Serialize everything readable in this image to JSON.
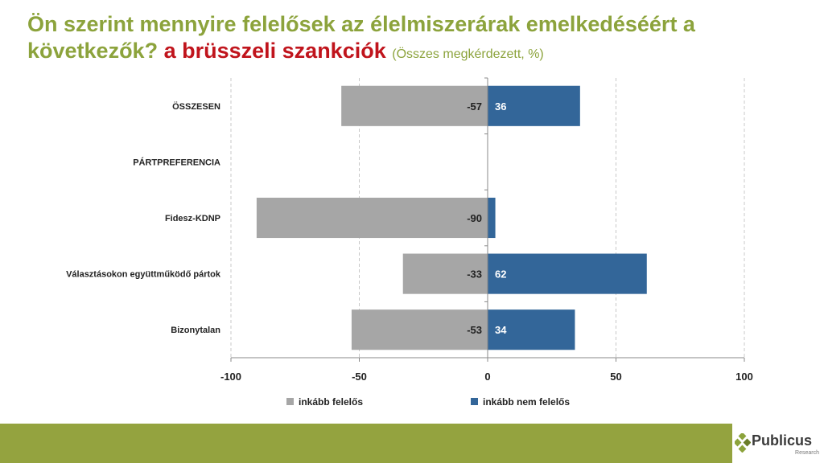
{
  "title": {
    "main": "Ön szerint mennyire felelősek az élelmiszerárak emelkedéséért a következők?",
    "highlight": "a brüsszeli szankciók",
    "subtitle": "(Összes megkérdezett, %)"
  },
  "logo": {
    "name": "Publicus",
    "sub": "Research"
  },
  "colors": {
    "title": "#8ca33c",
    "highlight": "#c0141c",
    "neg": "#a6a6a6",
    "pos": "#336699",
    "footer": "#94a33f"
  },
  "chart_data": {
    "type": "bar",
    "orientation": "horizontal-diverging",
    "categories": [
      "ÖSSZESEN",
      "PÁRTPREFERENCIA",
      "Fidesz-KDNP",
      "Választásokon együttműködő pártok",
      "Bizonytalan"
    ],
    "series": [
      {
        "name": "inkább felelős",
        "values": [
          -57,
          null,
          -90,
          -33,
          -53
        ],
        "color": "#a6a6a6"
      },
      {
        "name": "inkább nem felelős",
        "values": [
          36,
          null,
          3,
          62,
          34
        ],
        "color": "#336699"
      }
    ],
    "data_labels": {
      "inkább felelős": [
        "-57",
        "",
        "-90",
        "-33",
        "-53"
      ],
      "inkább nem felelős": [
        "36",
        "",
        "",
        "62",
        "34"
      ]
    },
    "xlim": [
      -100,
      100
    ],
    "xticks": [
      -100,
      -50,
      0,
      50,
      100
    ],
    "xtick_labels": [
      "-100",
      "-50",
      "0",
      "50",
      "100"
    ],
    "grid": "vertical-dashed",
    "legend": "bottom-center"
  }
}
